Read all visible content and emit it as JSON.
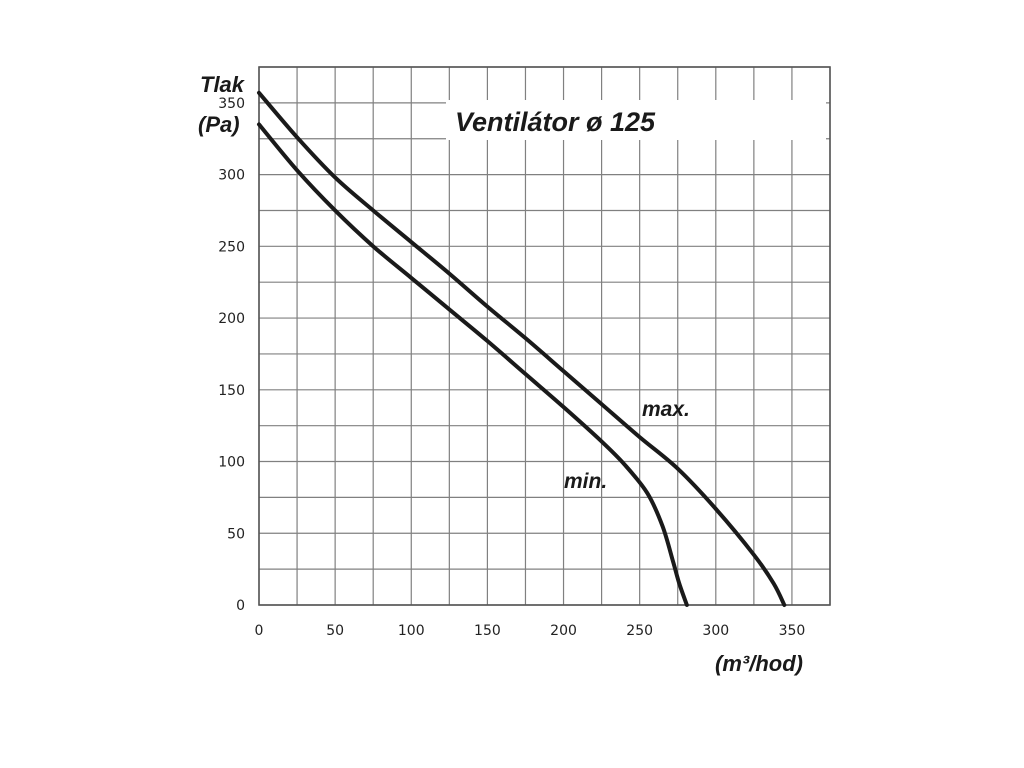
{
  "chart_data": {
    "type": "line",
    "title": "Ventilátor ø 125",
    "ylabel_line1": "Tlak",
    "ylabel_line2": "(Pa)",
    "xlabel": "(m³/hod)",
    "xlim": [
      0,
      375
    ],
    "ylim": [
      0,
      375
    ],
    "x_ticks": [
      0,
      50,
      100,
      150,
      200,
      250,
      300,
      350
    ],
    "y_ticks": [
      0,
      50,
      100,
      150,
      200,
      250,
      300,
      350
    ],
    "grid_step_x": 25,
    "grid_step_y": 25,
    "grid": true,
    "colors": {
      "line": "#1a1a1a",
      "grid": "#808080",
      "frame": "#555555"
    },
    "series": [
      {
        "name": "max.",
        "points": [
          [
            0,
            357
          ],
          [
            25,
            326
          ],
          [
            50,
            298
          ],
          [
            75,
            275
          ],
          [
            100,
            253
          ],
          [
            125,
            231
          ],
          [
            150,
            208
          ],
          [
            175,
            186
          ],
          [
            200,
            163
          ],
          [
            225,
            140
          ],
          [
            250,
            117
          ],
          [
            275,
            95
          ],
          [
            300,
            67
          ],
          [
            325,
            35
          ],
          [
            338,
            15
          ],
          [
            345,
            0
          ]
        ]
      },
      {
        "name": "min.",
        "points": [
          [
            0,
            335
          ],
          [
            25,
            303
          ],
          [
            50,
            275
          ],
          [
            75,
            250
          ],
          [
            100,
            228
          ],
          [
            125,
            206
          ],
          [
            150,
            184
          ],
          [
            175,
            161
          ],
          [
            200,
            138
          ],
          [
            225,
            114
          ],
          [
            240,
            98
          ],
          [
            255,
            78
          ],
          [
            265,
            55
          ],
          [
            272,
            30
          ],
          [
            276,
            15
          ],
          [
            281,
            0
          ]
        ]
      }
    ]
  }
}
